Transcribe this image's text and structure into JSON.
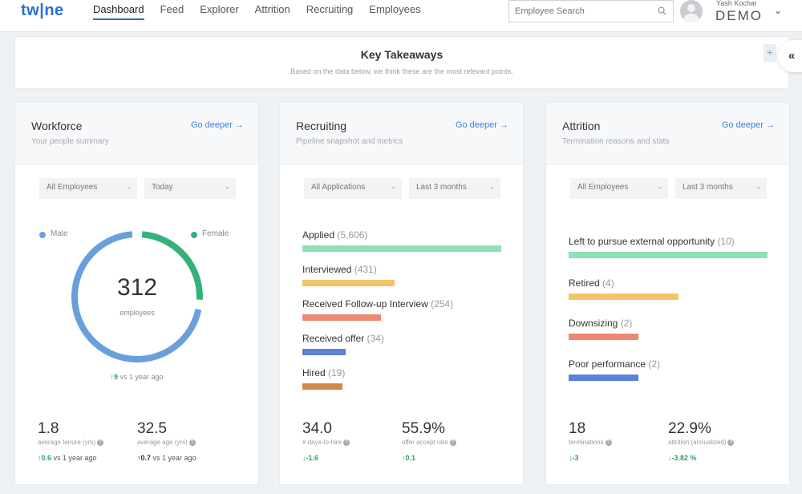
{
  "app": {
    "logo": "tw|ne"
  },
  "nav": [
    "Dashboard",
    "Feed",
    "Explorer",
    "Attrition",
    "Recruiting",
    "Employees"
  ],
  "search": {
    "placeholder": "Employee Search"
  },
  "user": {
    "name": "Yash Kochar",
    "org": "DEMO"
  },
  "takeaways": {
    "title": "Key Takeaways",
    "subtitle": "Based on the data below, we think these are the most relevant points.",
    "plus": "+",
    "collapse": "«"
  },
  "cards": {
    "workforce": {
      "title": "Workforce",
      "subtitle": "Your people summary",
      "go_deeper": "Go deeper",
      "filters": [
        "All Employees",
        "Today"
      ],
      "donut": {
        "male_label": "Male",
        "female_label": "Female",
        "total": "312",
        "total_label": "employees",
        "male_share": 0.73,
        "male_color": "#6a9fdc",
        "female_color": "#33b27a"
      },
      "delta": {
        "value": "9",
        "text": "vs 1 year ago"
      },
      "stats": [
        {
          "value": "1.8",
          "label": "average tenure (yrs)",
          "delta": "0.6",
          "delta_text": "vs 1 year ago",
          "dir": "up"
        },
        {
          "value": "32.5",
          "label": "average age (yrs)",
          "delta": "0.7",
          "delta_text": "vs 1 year ago",
          "dir": "up-dark"
        }
      ]
    },
    "recruiting": {
      "title": "Recruiting",
      "subtitle": "Pipeline snapshot and metrics",
      "go_deeper": "Go deeper",
      "filters": [
        "All Applications",
        "Last 3 months"
      ],
      "bars": [
        {
          "label": "Applied",
          "count": "(5,606)",
          "value": 5606,
          "color": "#8fe0b4"
        },
        {
          "label": "Interviewed",
          "count": "(431)",
          "value": 431,
          "color": "#f3c56a"
        },
        {
          "label": "Received Follow-up Interview",
          "count": "(254)",
          "value": 254,
          "color": "#ee8873"
        },
        {
          "label": "Received offer",
          "count": "(34)",
          "value": 34,
          "color": "#5b82d6"
        },
        {
          "label": "Hired",
          "count": "(19)",
          "value": 19,
          "color": "#d18a4e"
        }
      ],
      "stats": [
        {
          "value": "34.0",
          "label": "# days-to-hire",
          "delta": "-1.6",
          "dir": "down"
        },
        {
          "value": "55.9%",
          "label": "offer accept rate",
          "delta": "0.1",
          "dir": "up"
        }
      ]
    },
    "attrition": {
      "title": "Attrition",
      "subtitle": "Termination reasons and stats",
      "go_deeper": "Go deeper",
      "filters": [
        "All Employees",
        "Last 3 months"
      ],
      "bars": [
        {
          "label": "Left to pursue external opportunity",
          "count": "(10)",
          "value": 10,
          "color": "#8fe0b4"
        },
        {
          "label": "Retired",
          "count": "(4)",
          "value": 4,
          "color": "#f3c56a"
        },
        {
          "label": "Downsizing",
          "count": "(2)",
          "value": 2,
          "color": "#ee8873"
        },
        {
          "label": "Poor performance",
          "count": "(2)",
          "value": 2,
          "color": "#5b82d6"
        }
      ],
      "stats": [
        {
          "value": "18",
          "label": "terminations",
          "delta": "-3",
          "dir": "down"
        },
        {
          "value": "22.9%",
          "label": "attrition (annualized)",
          "delta": "-3.82 %",
          "dir": "down"
        }
      ]
    }
  }
}
